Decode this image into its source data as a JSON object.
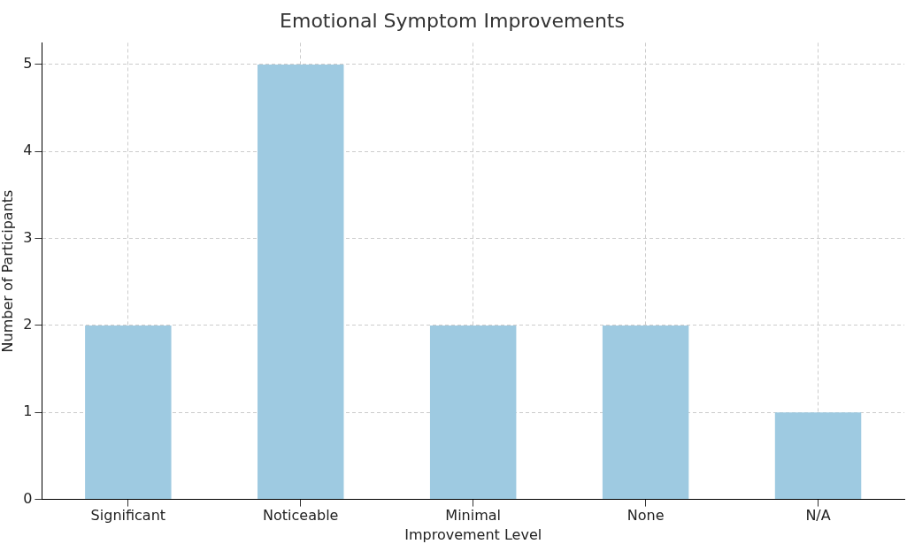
{
  "chart_data": {
    "type": "bar",
    "title": "Emotional Symptom Improvements",
    "xlabel": "Improvement Level",
    "ylabel": "Number of Participants",
    "categories": [
      "Significant",
      "Noticeable",
      "Minimal",
      "None",
      "N/A"
    ],
    "values": [
      2,
      5,
      2,
      2,
      1
    ],
    "color": "#9ecae1",
    "ylim": [
      0,
      5.25
    ],
    "yticks": [
      0,
      1,
      2,
      3,
      4,
      5
    ],
    "grid": true
  }
}
